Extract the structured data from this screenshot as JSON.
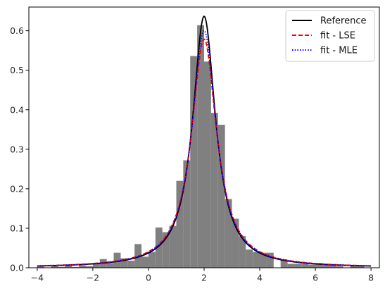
{
  "chart_data": {
    "type": "histogram-with-lines",
    "title": "",
    "xlabel": "",
    "ylabel": "",
    "xlim": [
      -4.3,
      8.3
    ],
    "ylim": [
      0,
      0.66
    ],
    "x_ticks": [
      -4,
      -2,
      0,
      2,
      4,
      6,
      8
    ],
    "y_ticks": [
      0.0,
      0.1,
      0.2,
      0.3,
      0.4,
      0.5,
      0.6
    ],
    "x_tick_labels": [
      "−4",
      "−2",
      "0",
      "2",
      "4",
      "6",
      "8"
    ],
    "y_tick_labels": [
      "0.0",
      "0.1",
      "0.2",
      "0.3",
      "0.4",
      "0.5",
      "0.6"
    ],
    "grid": false,
    "legend_position": "top-right",
    "histogram": {
      "color": "#808080",
      "bin_width": 0.25,
      "bars": [
        {
          "x0": -4.0,
          "height": 0.003
        },
        {
          "x0": -3.5,
          "height": 0.004
        },
        {
          "x0": -3.25,
          "height": 0.002
        },
        {
          "x0": -3.0,
          "height": 0.008
        },
        {
          "x0": -2.75,
          "height": 0.002
        },
        {
          "x0": -2.5,
          "height": 0.006
        },
        {
          "x0": -2.25,
          "height": 0.004
        },
        {
          "x0": -2.0,
          "height": 0.012
        },
        {
          "x0": -1.75,
          "height": 0.022
        },
        {
          "x0": -1.5,
          "height": 0.012
        },
        {
          "x0": -1.25,
          "height": 0.038
        },
        {
          "x0": -1.0,
          "height": 0.024
        },
        {
          "x0": -0.75,
          "height": 0.018
        },
        {
          "x0": -0.5,
          "height": 0.06
        },
        {
          "x0": -0.25,
          "height": 0.028
        },
        {
          "x0": 0.0,
          "height": 0.04
        },
        {
          "x0": 0.25,
          "height": 0.102
        },
        {
          "x0": 0.5,
          "height": 0.09
        },
        {
          "x0": 0.75,
          "height": 0.106
        },
        {
          "x0": 1.0,
          "height": 0.22
        },
        {
          "x0": 1.25,
          "height": 0.272
        },
        {
          "x0": 1.5,
          "height": 0.536
        },
        {
          "x0": 1.75,
          "height": 0.614
        },
        {
          "x0": 2.0,
          "height": 0.522
        },
        {
          "x0": 2.25,
          "height": 0.392
        },
        {
          "x0": 2.5,
          "height": 0.362
        },
        {
          "x0": 2.75,
          "height": 0.174
        },
        {
          "x0": 3.0,
          "height": 0.124
        },
        {
          "x0": 3.25,
          "height": 0.08
        },
        {
          "x0": 3.5,
          "height": 0.046
        },
        {
          "x0": 3.75,
          "height": 0.04
        },
        {
          "x0": 4.0,
          "height": 0.038
        },
        {
          "x0": 4.25,
          "height": 0.038
        },
        {
          "x0": 4.75,
          "height": 0.02
        },
        {
          "x0": 5.0,
          "height": 0.01
        },
        {
          "x0": 5.25,
          "height": 0.01
        },
        {
          "x0": 5.5,
          "height": 0.01
        },
        {
          "x0": 5.75,
          "height": 0.008
        },
        {
          "x0": 6.0,
          "height": 0.012
        },
        {
          "x0": 6.25,
          "height": 0.01
        },
        {
          "x0": 6.5,
          "height": 0.008
        },
        {
          "x0": 6.75,
          "height": 0.004
        },
        {
          "x0": 7.25,
          "height": 0.006
        },
        {
          "x0": 7.5,
          "height": 0.004
        }
      ]
    },
    "series": [
      {
        "name": "Reference",
        "color": "#000000",
        "dash": "solid",
        "curve": {
          "family": "cauchy",
          "location": 2.0,
          "scale": 0.5
        },
        "x_range": [
          -4,
          8
        ]
      },
      {
        "name": "fit - LSE",
        "color": "#ff0000",
        "dash": "dashed",
        "curve": {
          "family": "cauchy",
          "location": 2.0,
          "scale": 0.55
        },
        "x_range": [
          -4,
          8
        ]
      },
      {
        "name": "fit - MLE",
        "color": "#0000ff",
        "dash": "dotted",
        "curve": {
          "family": "cauchy",
          "location": 2.0,
          "scale": 0.53
        },
        "x_range": [
          -4,
          8
        ]
      }
    ]
  }
}
